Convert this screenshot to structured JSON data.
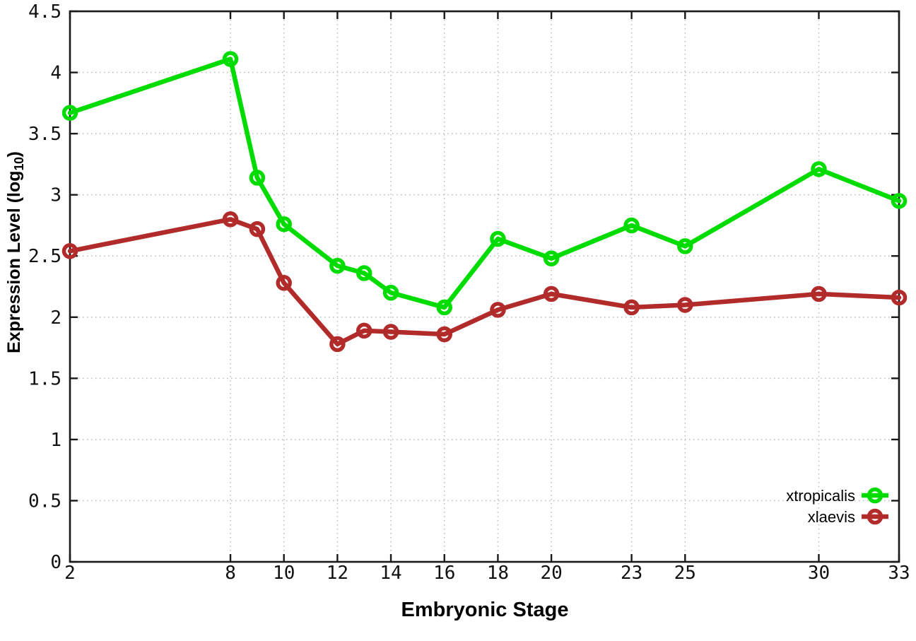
{
  "chart_data": {
    "type": "line",
    "title": "",
    "xlabel": "Embryonic Stage",
    "ylabel": "Expression Level (log10)",
    "ylabel_parts": {
      "main": "Expression Level (log",
      "sub": "10",
      "close": ")"
    },
    "xlim": [
      2,
      33
    ],
    "ylim": [
      0,
      4.5
    ],
    "grid": true,
    "legend_position": "bottom-right",
    "x_ticks": [
      2,
      8,
      10,
      12,
      14,
      16,
      18,
      20,
      23,
      25,
      30,
      33
    ],
    "x_tick_labels": [
      "2",
      "8",
      "10",
      "12",
      "14",
      "16",
      "18",
      "20",
      "23",
      "25",
      "30",
      "33"
    ],
    "y_ticks": [
      0,
      0.5,
      1,
      1.5,
      2,
      2.5,
      3,
      3.5,
      4,
      4.5
    ],
    "y_tick_labels": [
      "0",
      "0.5",
      "1",
      "1.5",
      "2",
      "2.5",
      "3",
      "3.5",
      "4",
      "4.5"
    ],
    "x": [
      2,
      8,
      9,
      10,
      12,
      13,
      14,
      16,
      18,
      20,
      23,
      25,
      30,
      33
    ],
    "series": [
      {
        "name": "xtropicalis",
        "color": "#00dc00",
        "values": [
          3.67,
          4.11,
          3.14,
          2.76,
          2.42,
          2.36,
          2.2,
          2.08,
          2.64,
          2.48,
          2.75,
          2.58,
          3.21,
          2.95
        ]
      },
      {
        "name": "xlaevis",
        "color": "#b12b2b",
        "values": [
          2.54,
          2.8,
          2.72,
          2.28,
          1.78,
          1.89,
          1.88,
          1.86,
          2.06,
          2.19,
          2.08,
          2.1,
          2.19,
          2.16
        ]
      }
    ],
    "colors": {
      "background": "#ffffff",
      "axis": "#1a1a1a",
      "gridline": "#b9b9b9"
    }
  }
}
